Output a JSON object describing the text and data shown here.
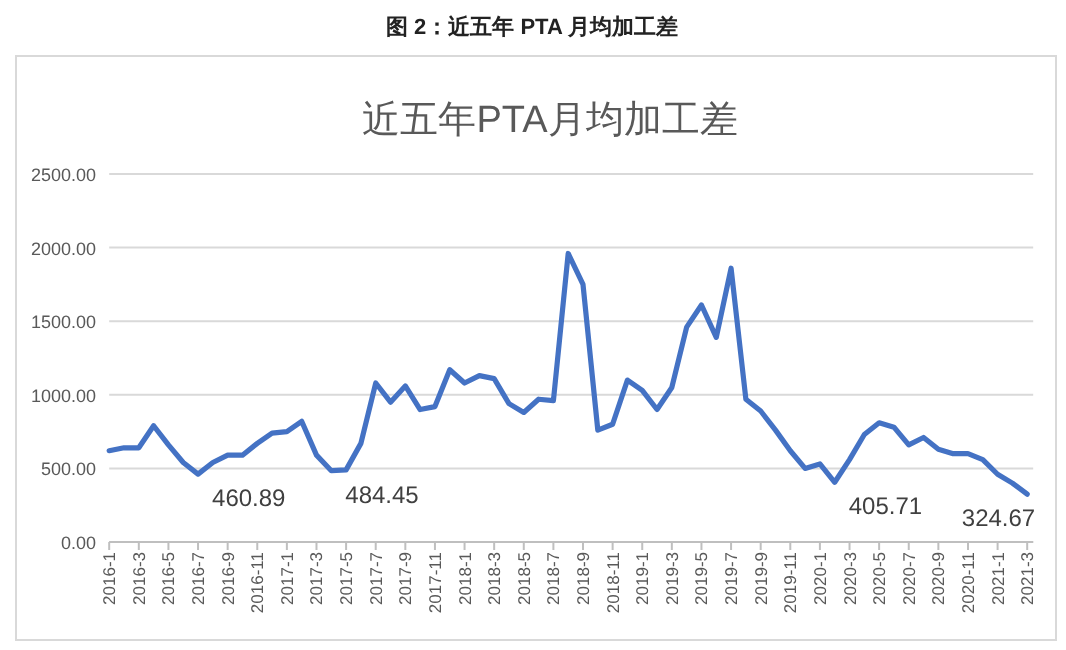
{
  "chart_data": {
    "type": "line",
    "title": "近五年PTA月均加工差",
    "annotations": [
      "图 2：近五年 PTA 月均加工差"
    ],
    "categories": [
      "2016-1",
      null,
      "2016-3",
      null,
      "2016-5",
      null,
      "2016-7",
      null,
      "2016-9",
      null,
      "2016-11",
      null,
      "2017-1",
      null,
      "2017-3",
      null,
      "2017-5",
      null,
      "2017-7",
      null,
      "2017-9",
      null,
      "2017-11",
      null,
      "2018-1",
      null,
      "2018-3",
      null,
      "2018-5",
      null,
      "2018-7",
      null,
      "2018-9",
      null,
      "2018-11",
      null,
      "2019-1",
      null,
      "2019-3",
      null,
      "2019-5",
      null,
      "2019-7",
      null,
      "2019-9",
      null,
      "2019-11",
      null,
      "2020-1",
      null,
      "2020-3",
      null,
      "2020-5",
      null,
      "2020-7",
      null,
      "2020-9",
      null,
      "2020-11",
      null,
      "2021-1",
      null,
      "2021-3"
    ],
    "series": [
      {
        "color": "#4472c4",
        "values": [
          620,
          640,
          640,
          790,
          660,
          540,
          460.89,
          540,
          590,
          590,
          670,
          740,
          750,
          820,
          590,
          484.45,
          490,
          670,
          1080,
          950,
          1060,
          900,
          920,
          1170,
          1080,
          1130,
          1110,
          940,
          880,
          970,
          960,
          1960,
          1750,
          760,
          800,
          1100,
          1030,
          900,
          1050,
          1460,
          1610,
          1390,
          1860,
          970,
          890,
          760,
          620,
          500,
          530,
          405.71,
          560,
          730,
          810,
          780,
          660,
          710,
          630,
          600,
          600,
          560,
          460,
          400,
          324.67
        ],
        "value_labels": [
          null,
          null,
          null,
          null,
          null,
          null,
          "460.89",
          null,
          null,
          null,
          null,
          null,
          null,
          null,
          null,
          "484.45",
          null,
          null,
          null,
          null,
          null,
          null,
          null,
          null,
          null,
          null,
          null,
          null,
          null,
          null,
          null,
          null,
          null,
          null,
          null,
          null,
          null,
          null,
          null,
          null,
          null,
          null,
          null,
          null,
          null,
          null,
          null,
          null,
          null,
          "405.71",
          null,
          null,
          null,
          null,
          null,
          null,
          null,
          null,
          null,
          null,
          null,
          null,
          "324.67"
        ]
      }
    ],
    "ylim": [
      0,
      2500
    ],
    "yticks": [
      {
        "value": 0,
        "label": "0.00"
      },
      {
        "value": 500,
        "label": "500.00"
      },
      {
        "value": 1000,
        "label": "1000.00"
      },
      {
        "value": 1500,
        "label": "1500.00"
      },
      {
        "value": 2000,
        "label": "2000.00"
      },
      {
        "value": 2500,
        "label": "2500.00"
      }
    ],
    "grid": "y",
    "marker": "none",
    "line_style": "solid"
  }
}
